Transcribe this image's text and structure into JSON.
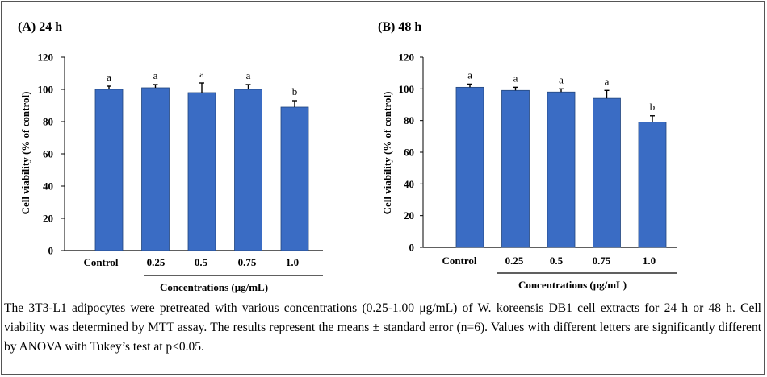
{
  "figure": {
    "caption": "The 3T3-L1 adipocytes were pretreated with various concentrations (0.25-1.00 μg/mL) of W. koreensis DB1 cell extracts for 24 h or 48 h. Cell viability was determined by MTT assay. The results represent the means ± standard error (n=6). Values with different letters are significantly different by ANOVA with Tukey’s test at p<0.05."
  },
  "colors": {
    "bar": "#3a6cc4",
    "bar_edge": "#24477e",
    "axis": "#000000"
  },
  "chart_data": [
    {
      "type": "bar",
      "title": "(A) 24 h",
      "categories": [
        "Control",
        "0.25",
        "0.5",
        "0.75",
        "1.0"
      ],
      "values": [
        100,
        101,
        98,
        100,
        89
      ],
      "errors": [
        2,
        2,
        6,
        3,
        4
      ],
      "letters": [
        "a",
        "a",
        "a",
        "a",
        "b"
      ],
      "xlabel": "Concentrations (μg/mL)",
      "ylabel": "Cell viability (% of control)",
      "ylim": [
        0,
        120
      ],
      "yticks": [
        "0",
        "20",
        "40",
        "60",
        "80",
        "100",
        "120"
      ]
    },
    {
      "type": "bar",
      "title": "(B) 48 h",
      "categories": [
        "Control",
        "0.25",
        "0.5",
        "0.75",
        "1.0"
      ],
      "values": [
        101,
        99,
        98,
        94,
        79
      ],
      "errors": [
        2,
        2,
        2,
        5,
        4
      ],
      "letters": [
        "a",
        "a",
        "a",
        "a",
        "b"
      ],
      "xlabel": "Concentrations (μg/mL)",
      "ylabel": "Cell viability (% of control)",
      "ylim": [
        0,
        120
      ],
      "yticks": [
        "0",
        "20",
        "40",
        "60",
        "80",
        "100",
        "120"
      ]
    }
  ]
}
